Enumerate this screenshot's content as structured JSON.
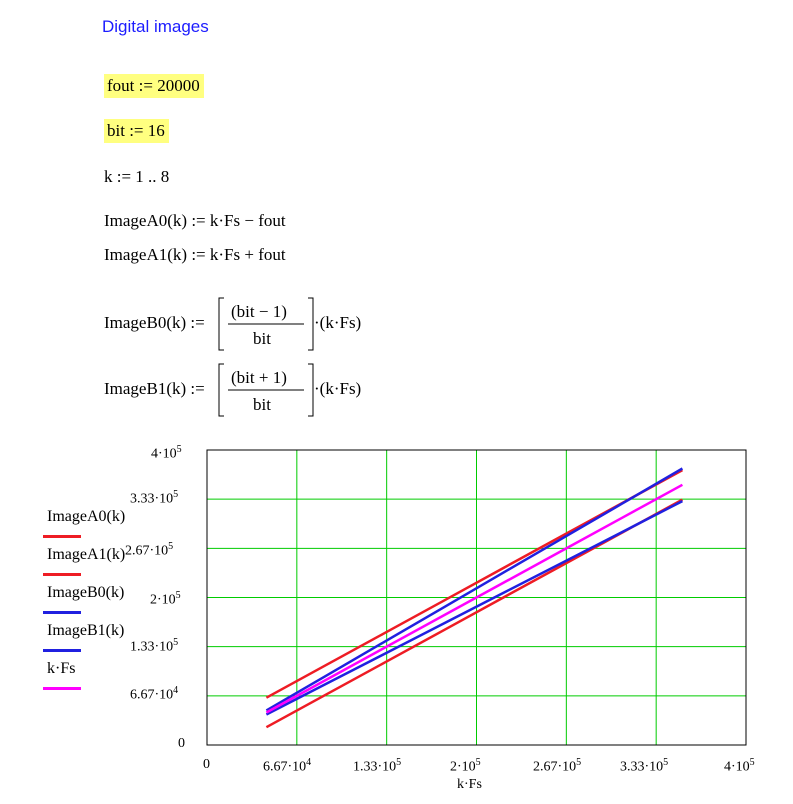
{
  "heading": "Digital images",
  "definitions": {
    "fout": "fout := 20000",
    "bit": "bit := 16",
    "k": "k := 1 .. 8",
    "imageA0": "ImageA0(k) := k·Fs − fout",
    "imageA1": "ImageA1(k) := k·Fs + fout",
    "imageB0_lhs": "ImageB0(k) :=",
    "imageB0_num": "(bit − 1)",
    "imageB0_den": "bit",
    "imageB0_rhs": "·(k·Fs)",
    "imageB1_lhs": "ImageB1(k) :=",
    "imageB1_num": "(bit + 1)",
    "imageB1_den": "bit",
    "imageB1_rhs": "·(k·Fs)"
  },
  "colors": {
    "highlight": "#ffff80",
    "heading": "#1c1cff",
    "grid": "#00cc00",
    "red": "#ee1c24",
    "blue": "#2020e0",
    "magenta": "#ff00ff"
  },
  "legend": [
    {
      "label": "ImageA0(k)",
      "color": "#ee1c24"
    },
    {
      "label": "ImageA1(k)",
      "color": "#ee1c24"
    },
    {
      "label": "ImageB0(k)",
      "color": "#2020e0"
    },
    {
      "label": "ImageB1(k)",
      "color": "#2020e0"
    },
    {
      "label": "k·Fs",
      "color": "#ff00ff"
    }
  ],
  "axes": {
    "xlabel": "k·Fs",
    "xticks": [
      {
        "base": "0",
        "exp": ""
      },
      {
        "base": "6.67·10",
        "exp": "4"
      },
      {
        "base": "1.33·10",
        "exp": "5"
      },
      {
        "base": "2·10",
        "exp": "5"
      },
      {
        "base": "2.67·10",
        "exp": "5"
      },
      {
        "base": "3.33·10",
        "exp": "5"
      },
      {
        "base": "4·10",
        "exp": "5"
      }
    ],
    "yticks": [
      {
        "base": "0",
        "exp": ""
      },
      {
        "base": "6.67·10",
        "exp": "4"
      },
      {
        "base": "1.33·10",
        "exp": "5"
      },
      {
        "base": "2·10",
        "exp": "5"
      },
      {
        "base": "2.67·10",
        "exp": "5"
      },
      {
        "base": "3.33·10",
        "exp": "5"
      },
      {
        "base": "4·10",
        "exp": "5"
      }
    ]
  },
  "chart_data": {
    "type": "line",
    "title": "",
    "xlabel": "k·Fs",
    "ylabel": "",
    "xlim": [
      0,
      400000
    ],
    "ylim": [
      0,
      400000
    ],
    "grid": true,
    "legend_position": "left",
    "x": [
      44100,
      88200,
      132300,
      176400,
      220500,
      264600,
      308700,
      352800
    ],
    "series": [
      {
        "name": "ImageA0(k)",
        "color": "#ee1c24",
        "values": [
          24100,
          68200,
          112300,
          156400,
          200500,
          244600,
          288700,
          332800
        ]
      },
      {
        "name": "ImageA1(k)",
        "color": "#ee1c24",
        "values": [
          64100,
          108200,
          152300,
          196400,
          240500,
          284600,
          328700,
          372800
        ]
      },
      {
        "name": "ImageB0(k)",
        "color": "#2020e0",
        "values": [
          41344,
          82688,
          124031,
          165375,
          206719,
          248063,
          289406,
          330750
        ]
      },
      {
        "name": "ImageB1(k)",
        "color": "#2020e0",
        "values": [
          46856,
          93713,
          140569,
          187425,
          234281,
          281138,
          327994,
          374850
        ]
      },
      {
        "name": "k·Fs",
        "color": "#ff00ff",
        "values": [
          44100,
          88200,
          132300,
          176400,
          220500,
          264600,
          308700,
          352800
        ]
      }
    ]
  }
}
